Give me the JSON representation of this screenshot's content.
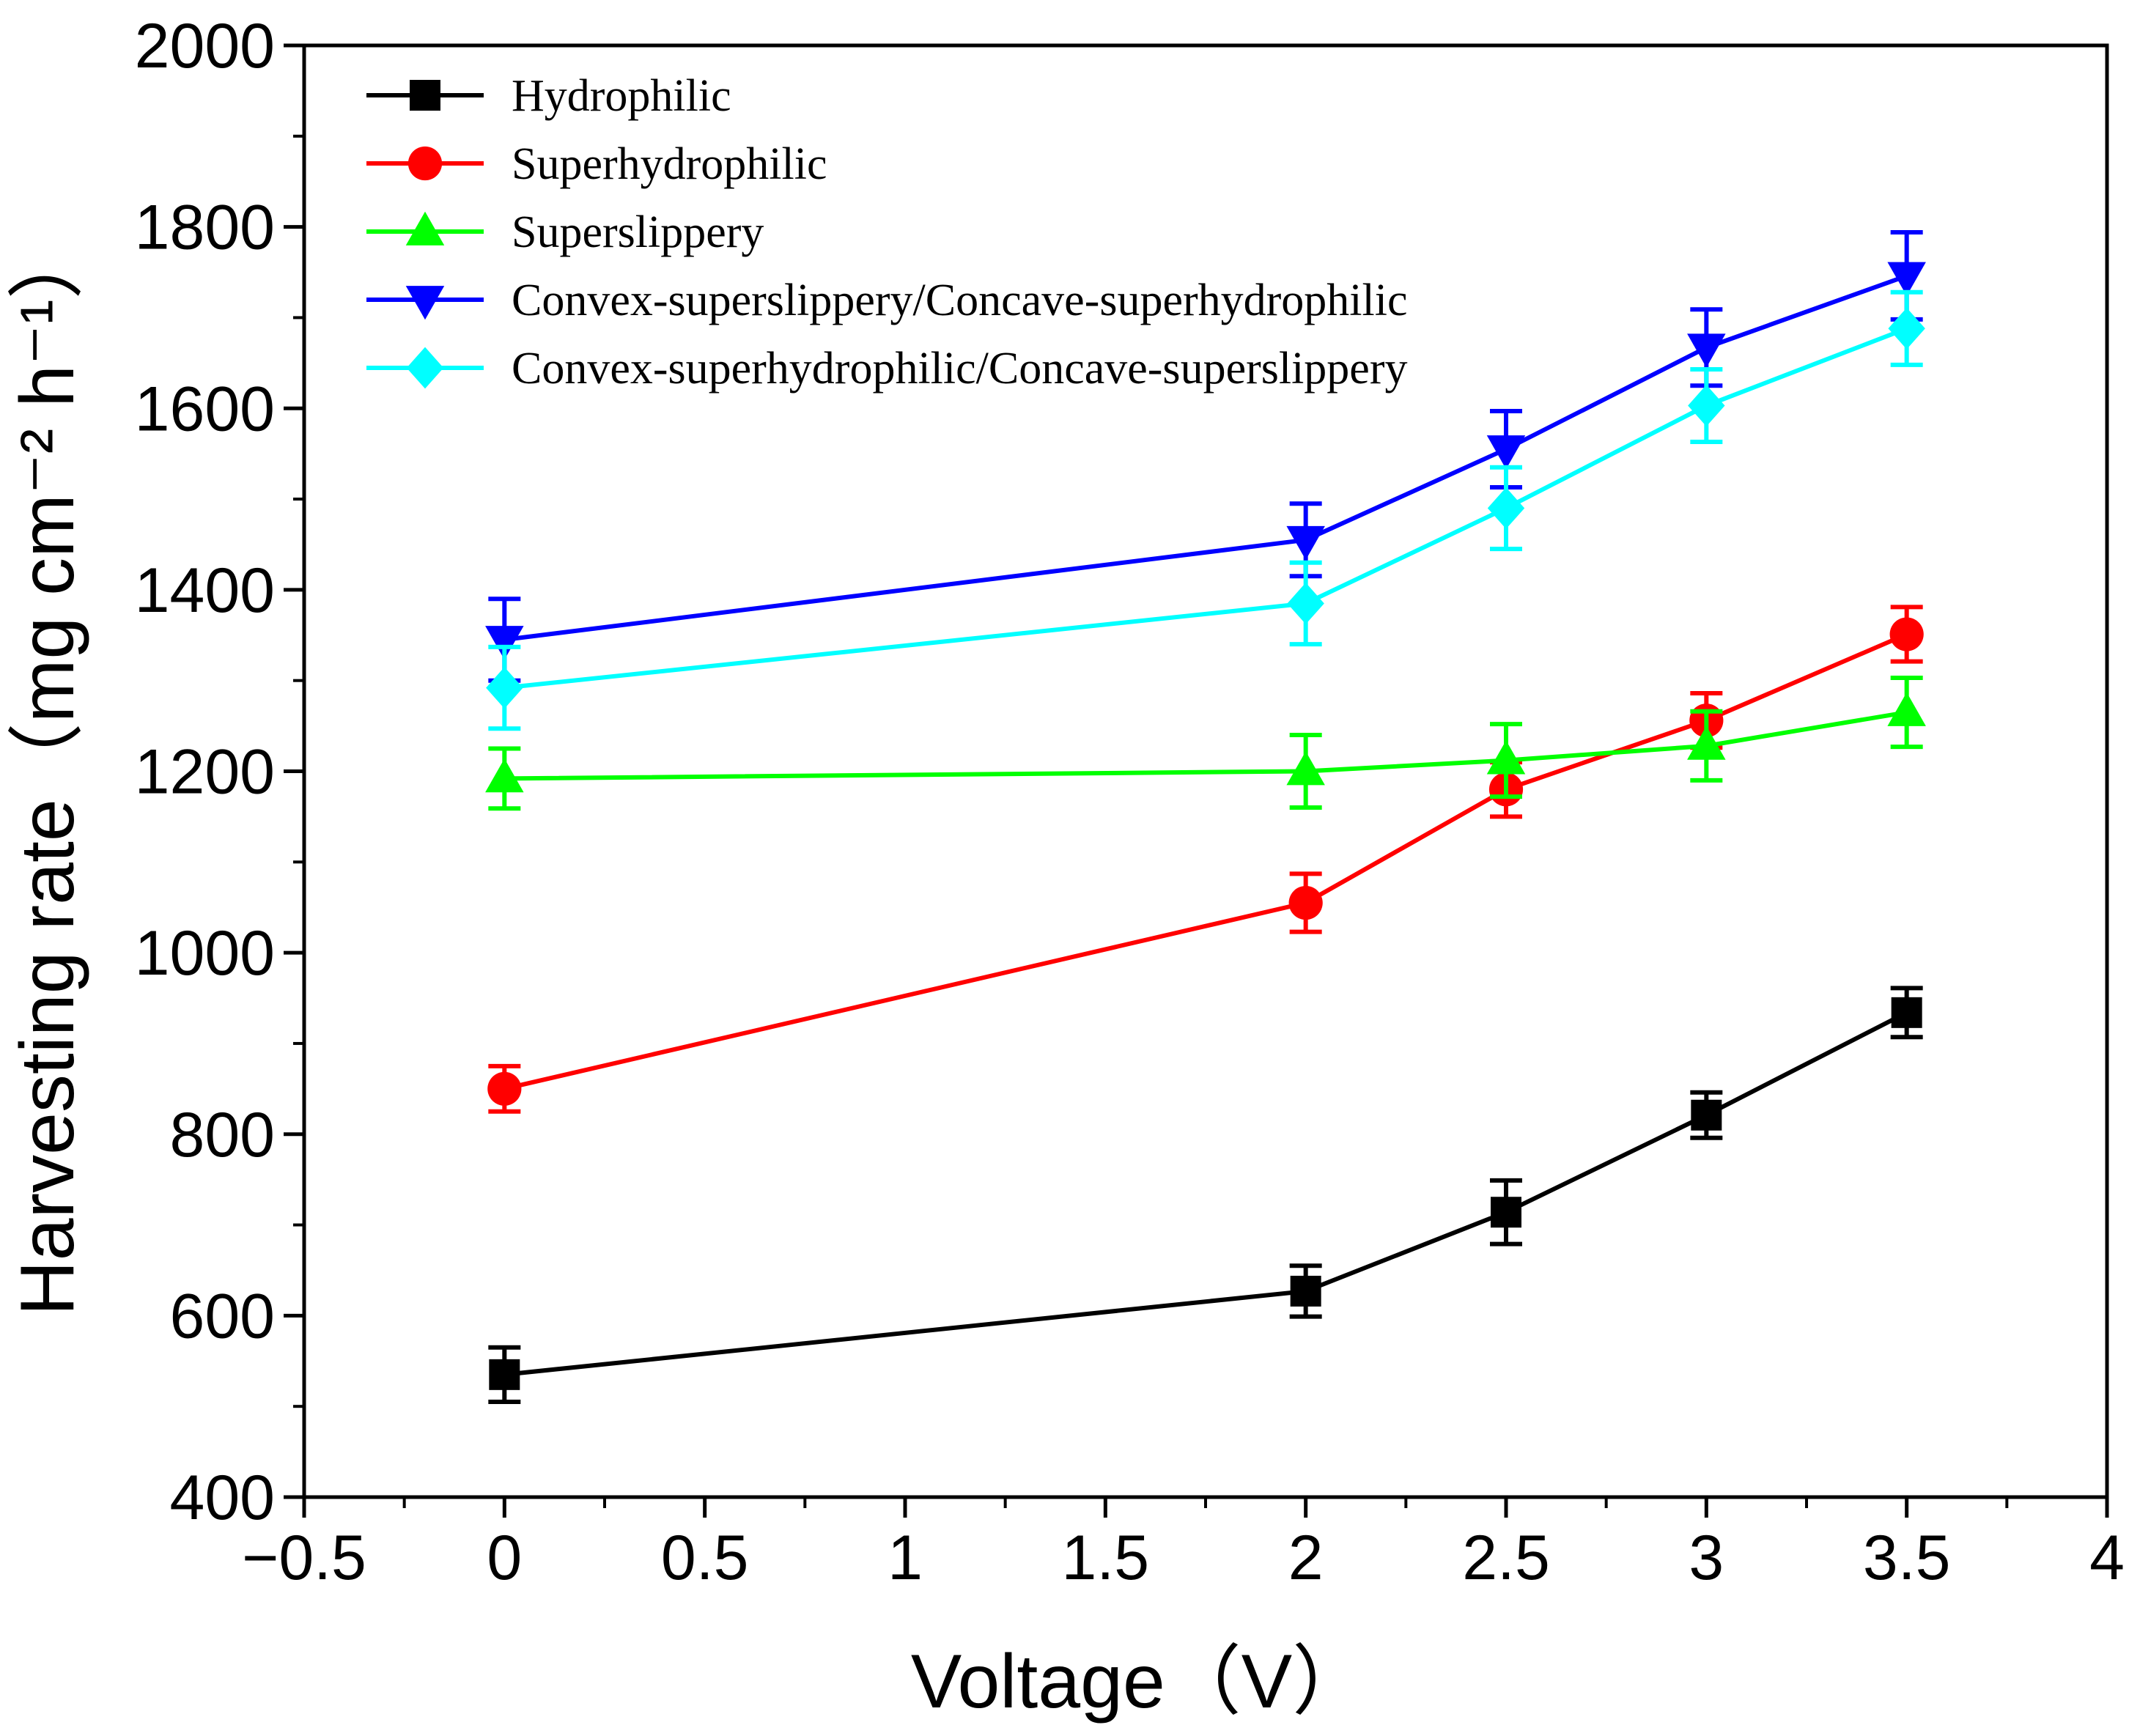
{
  "chart_data": {
    "type": "line",
    "xlabel": "Voltage（V）",
    "ylabel": "Harvesting rate（mg cm⁻² h⁻¹）",
    "xlim": [
      -0.5,
      4
    ],
    "ylim": [
      400,
      2000
    ],
    "x_ticks": [
      -0.5,
      0,
      0.5,
      1,
      1.5,
      2,
      2.5,
      3,
      3.5,
      4
    ],
    "x_tick_labels": [
      "−0.5",
      "0",
      "0.5",
      "1",
      "1.5",
      "2",
      "2.5",
      "3",
      "3.5",
      "4"
    ],
    "y_ticks": [
      400,
      600,
      800,
      1000,
      1200,
      1400,
      1600,
      1800,
      2000
    ],
    "y_tick_labels": [
      "400",
      "600",
      "800",
      "1000",
      "1200",
      "1400",
      "1600",
      "1800",
      "2000"
    ],
    "grid": false,
    "legend_position": "top-left",
    "x": [
      0,
      2,
      2.5,
      3,
      3.5
    ],
    "series": [
      {
        "name": "Hydrophilic",
        "color": "#000000",
        "marker": "square",
        "values": [
          535,
          627,
          714,
          821,
          934
        ],
        "errors": [
          30,
          28,
          35,
          25,
          27
        ]
      },
      {
        "name": "Superhydrophilic",
        "color": "#ff0000",
        "marker": "circle",
        "values": [
          850,
          1055,
          1180,
          1256,
          1351
        ],
        "errors": [
          25,
          32,
          30,
          30,
          30
        ]
      },
      {
        "name": "Superslippery",
        "color": "#00ff00",
        "marker": "triangle-up",
        "values": [
          1192,
          1200,
          1212,
          1228,
          1265
        ],
        "errors": [
          33,
          40,
          40,
          38,
          38
        ]
      },
      {
        "name": "Convex-superslippery/Concave-superhydrophilic",
        "color": "#0000ff",
        "marker": "triangle-down",
        "values": [
          1345,
          1455,
          1555,
          1667,
          1746
        ],
        "errors": [
          45,
          40,
          42,
          42,
          48
        ]
      },
      {
        "name": "Convex-superhydrophilic/Concave-superslippery",
        "color": "#00ffff",
        "marker": "diamond",
        "values": [
          1292,
          1385,
          1490,
          1603,
          1688
        ],
        "errors": [
          45,
          45,
          45,
          40,
          40
        ]
      }
    ]
  }
}
